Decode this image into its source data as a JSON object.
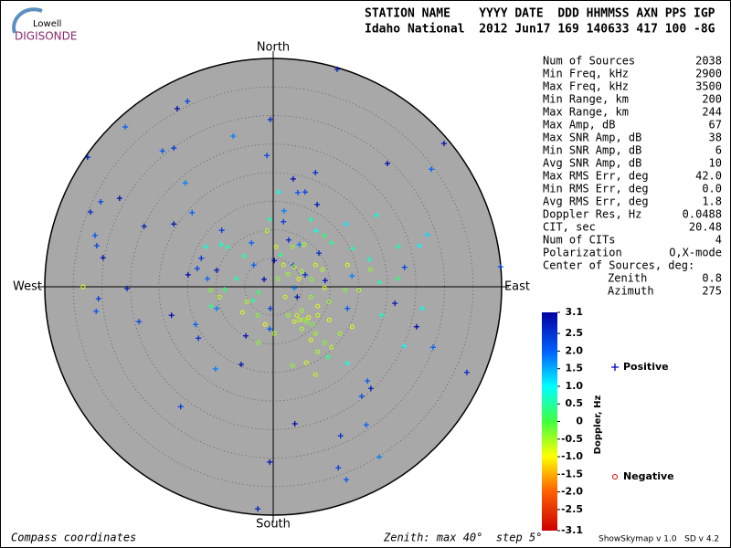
{
  "logo": {
    "top": "Lowell",
    "name": "DIGISONDE"
  },
  "header": {
    "line1": "STATION NAME    YYYY DATE  DDD HHMMSS AXN PPS IGP",
    "line2": "Idaho National  2012 Jun17 169 140633 417 100 -8G"
  },
  "stats": {
    "rows": [
      [
        "Num of Sources",
        "2038"
      ],
      [
        "Min Freq, kHz",
        "2900"
      ],
      [
        "Max Freq, kHz",
        "3500"
      ],
      [
        "Min Range, km",
        "200"
      ],
      [
        "Max Range, km",
        "244"
      ],
      [
        "Max Amp, dB",
        "67"
      ],
      [
        "Max SNR Amp, dB",
        "38"
      ],
      [
        "Min SNR Amp, dB",
        "6"
      ],
      [
        "Avg SNR Amp, dB",
        "10"
      ],
      [
        "Max RMS Err, deg",
        "42.0"
      ],
      [
        "Min RMS Err, deg",
        "0.0"
      ],
      [
        "Avg RMS Err, deg",
        "1.8"
      ],
      [
        "Doppler Res, Hz",
        "0.0488"
      ],
      [
        "CIT, sec",
        "20.48"
      ],
      [
        "Num of CITs",
        "4"
      ],
      [
        "Polarization",
        "O,X-mode"
      ]
    ],
    "center_label": "Center of Sources, deg:",
    "center_rows": [
      [
        "Zenith",
        "0.8"
      ],
      [
        "Azimuth",
        "275"
      ]
    ]
  },
  "chart_data": {
    "type": "scatter",
    "directions": {
      "north": "North",
      "south": "South",
      "east": "East",
      "west": "West"
    },
    "xlim": [
      -40,
      40
    ],
    "ylim": [
      -40,
      40
    ],
    "rticks": [
      5,
      10,
      15,
      20,
      25,
      30,
      35
    ],
    "clim": [
      -3.1,
      3.1
    ],
    "colorbar_label": "Doppler, Hz",
    "cticks": [
      3.1,
      2.5,
      {
        "value": 2,
        "label": "2.0"
      },
      1.5,
      {
        "value": 1,
        "label": "1.0"
      },
      0.5,
      0,
      -0.5,
      {
        "value": -1,
        "label": "-1.0"
      },
      -1.5,
      {
        "value": -2,
        "label": "-2.0"
      },
      -2.5,
      -3.1
    ],
    "series": [
      {
        "name": "Positive",
        "color": "#0000cc",
        "marker": "cross",
        "x": [
          11.2,
          -15.0,
          -16.8,
          -25.9,
          -0.5,
          -7.0,
          29.9,
          -17.4,
          -19.4,
          -32.5,
          -1.1,
          20.0,
          27.7,
          7.4,
          -15.4,
          3.5,
          5.6,
          4.3,
          7.7,
          -30.2,
          -26.9,
          -14.2,
          -32.0,
          1.9,
          -17.4,
          -9.0,
          -31.2,
          -22.6,
          -30.9,
          -29.8,
          -3.8,
          2.7,
          4.6,
          0.2,
          -12.6,
          -3.4,
          -9.9,
          -13.3,
          -14.9,
          -11.5,
          5.6,
          3.7,
          4.2,
          -30.6,
          -31.0,
          -25.6,
          -23.5,
          -17.8,
          -13.6,
          -13.1,
          -9.9,
          -4.8,
          -0.5,
          13.0,
          21.3,
          23.0,
          25.1,
          28.0,
          33.9,
          -10.1,
          -5.6,
          -16.2,
          16.5,
          17.1,
          15.5,
          3.8,
          16.3,
          11.8,
          18.6,
          -0.6,
          11.4,
          12.8,
          -2.7,
          39.8,
          -1.6,
          3.5,
          8.0,
          13.8,
          9.1,
          1.8,
          -0.6,
          -0.6,
          7.5,
          10.2,
          12.8,
          18.1,
          13.9,
          16.8,
          25.6,
          27.0,
          21.8,
          21.9,
          26.1,
          1.3,
          -2.6,
          -8.0,
          -9.1,
          -8.5,
          -6.4,
          -11.8,
          -10.9,
          -3.5,
          1.0,
          18.6,
          19.0,
          22.9,
          9.6,
          13.0,
          -5.1,
          6.6,
          9.0
        ],
        "y": [
          38.1,
          32.5,
          31.2,
          28.0,
          29.3,
          26.4,
          25.1,
          24.3,
          23.8,
          22.7,
          23.0,
          21.6,
          20.6,
          20.0,
          18.2,
          18.9,
          16.6,
          16.5,
          14.4,
          14.9,
          15.5,
          13.0,
          13.1,
          13.3,
          11.0,
          9.9,
          9.0,
          10.6,
          7.2,
          5.1,
          7.7,
          8.2,
          7.4,
          4.6,
          5.0,
          3.8,
          2.9,
          3.2,
          2.1,
          1.4,
          2.1,
          -0.2,
          -1.8,
          -2.1,
          -4.3,
          -0.3,
          -6.1,
          -5.0,
          -6.6,
          -9.0,
          -3.8,
          -8.6,
          -3.8,
          -3.8,
          -2.9,
          3.4,
          -7.0,
          -10.6,
          -15.0,
          -14.4,
          -13.6,
          -21.0,
          -16.5,
          -17.8,
          -19.2,
          -24.0,
          -24.2,
          -26.1,
          -29.8,
          -30.7,
          -31.7,
          -33.8,
          -38.9,
          3.5,
          1.3,
          3.8,
          5.9,
          1.9,
          1.1,
          11.4,
          -7.4,
          11.8,
          9.8,
          7.7,
          11.0,
          12.5,
          6.7,
          4.8,
          7.2,
          9.1,
          1.4,
          7.0,
          -3.8,
          5.6,
          -1.0,
          6.9,
          7.4,
          -0.5,
          1.4,
          7.0,
          -3.4,
          -2.4,
          16.6,
          0.8,
          -5.0,
          -10.4,
          -12.3,
          -13.4,
          5.4,
          11.8,
          9.0
        ],
        "doppler": [
          2.8,
          2.3,
          3.0,
          2.0,
          2.6,
          1.8,
          2.9,
          2.4,
          2.1,
          2.8,
          2.3,
          3.0,
          2.0,
          2.6,
          1.8,
          2.9,
          2.4,
          2.1,
          2.8,
          2.3,
          3.0,
          2.0,
          2.6,
          1.8,
          2.9,
          2.4,
          2.1,
          2.8,
          2.3,
          3.0,
          2.0,
          2.6,
          1.8,
          2.9,
          2.4,
          2.1,
          2.8,
          2.3,
          3.0,
          2.0,
          2.6,
          1.8,
          2.9,
          2.4,
          2.1,
          2.8,
          2.3,
          3.0,
          2.0,
          2.6,
          1.8,
          2.9,
          2.4,
          2.1,
          2.8,
          2.3,
          3.0,
          2.0,
          2.6,
          1.8,
          2.9,
          2.4,
          2.1,
          2.8,
          2.3,
          3.0,
          2.0,
          2.6,
          1.8,
          2.9,
          2.4,
          2.1,
          2.8,
          2.3,
          3.0,
          2.0,
          2.6,
          1.8,
          2.9,
          2.4,
          2.1,
          0.6,
          0.9,
          0.4,
          1.1,
          0.8,
          0.5,
          0.7,
          1.0,
          1.2,
          0.3,
          0.6,
          0.9,
          0.4,
          0.2,
          0.5,
          0.7,
          0.3,
          0.6,
          0.8,
          0.4,
          0.5,
          0.9,
          0.6,
          0.7,
          1.0,
          0.4,
          0.8,
          0.5,
          0.6,
          0.3
        ]
      },
      {
        "name": "Negative",
        "color": "#dd0000",
        "marker": "circle",
        "x": [
          -1.1,
          0.5,
          3.4,
          3.7,
          5.0,
          4.5,
          6.7,
          8.6,
          9.0,
          9.8,
          4.2,
          5.4,
          6.2,
          6.9,
          5.0,
          3.7,
          2.6,
          7.8,
          7.4,
          6.6,
          9.0,
          7.8,
          5.8,
          3.4,
          7.4,
          0.2,
          -1.4,
          -2.7,
          -4.6,
          -5.4,
          -2.6,
          10.2,
          11.7,
          13.8,
          12.6,
          15.0,
          13.0,
          17.0,
          1.8,
          2.6,
          -33.3,
          -11.0,
          -9.4,
          7.8,
          6.6,
          2.1,
          5.0,
          9.8,
          0.8,
          5.4,
          7.4,
          5.9,
          4.6
        ],
        "y": [
          9.8,
          7.0,
          7.0,
          3.5,
          2.7,
          1.4,
          1.3,
          3.0,
          -0.2,
          -2.6,
          -5.0,
          -5.8,
          -5.4,
          -6.6,
          -7.4,
          -6.1,
          -5.0,
          -5.0,
          -8.2,
          -9.3,
          -9.8,
          -11.4,
          -13.3,
          -13.8,
          -15.4,
          -8.2,
          -6.6,
          -5.0,
          -2.6,
          -4.5,
          -9.8,
          -10.6,
          -8.2,
          -7.0,
          -0.6,
          -0.6,
          3.8,
          3.0,
          3.8,
          2.2,
          0.0,
          -0.6,
          -1.8,
          -3.4,
          -1.8,
          -1.8,
          -4.2,
          -5.8,
          1.4,
          7.4,
          3.8,
          -6.2,
          -5.8
        ],
        "doppler": [
          -0.6,
          -0.8,
          -0.4,
          -0.7,
          -0.5,
          -0.9,
          -0.3,
          -0.6,
          -0.8,
          -0.4,
          -0.7,
          -0.5,
          -0.9,
          -0.3,
          -0.6,
          -0.8,
          -0.4,
          -0.7,
          -0.5,
          -0.9,
          -0.3,
          -0.6,
          -0.8,
          -0.4,
          -0.7,
          -0.5,
          -0.9,
          -0.3,
          -0.6,
          -0.8,
          -0.4,
          -0.7,
          -0.5,
          -0.9,
          -0.3,
          -0.6,
          -0.8,
          -0.4,
          -0.7,
          -0.5,
          -0.9,
          -0.3,
          -0.6,
          -0.8,
          -0.4,
          -0.7,
          -0.5,
          -0.9,
          -0.3,
          -0.6,
          -0.8,
          -0.4,
          -0.7
        ]
      }
    ]
  },
  "footer": {
    "left": "Compass coordinates",
    "zenith": "Zenith: max 40°  step 5°",
    "version": "ShowSkymap v 1.0   SD v 4.2"
  }
}
